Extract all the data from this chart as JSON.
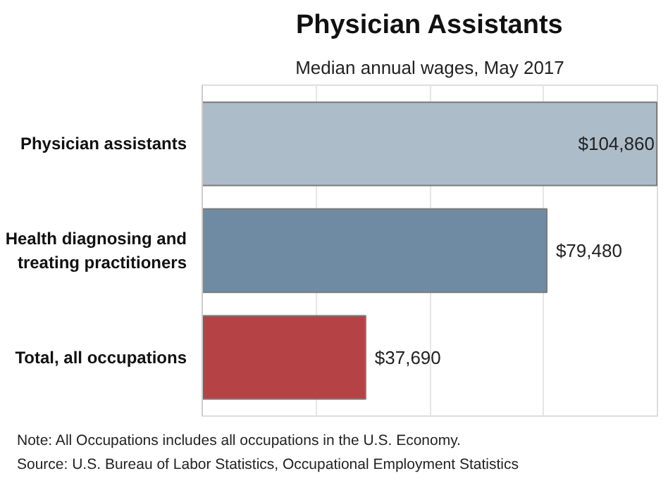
{
  "chart_data": {
    "type": "bar",
    "orientation": "horizontal",
    "title": "Physician Assistants",
    "subtitle": "Median annual wages, May 2017",
    "categories": [
      "Physician assistants",
      "Health diagnosing and treating practitioners",
      "Total, all occupations"
    ],
    "values": [
      104860,
      79480,
      37690
    ],
    "colors": [
      "#adbcc9",
      "#6f8ba4",
      "#b54345"
    ],
    "value_labels": [
      "$104,860",
      "$79,480",
      "$37,690"
    ],
    "xlim": [
      0,
      105000
    ],
    "xticks": [
      {
        "value": 0,
        "label": null
      },
      {
        "value": 26250,
        "label": null
      },
      {
        "value": 52500,
        "label": null
      },
      {
        "value": 78750,
        "label": null
      },
      {
        "value": 105000,
        "label": null
      }
    ],
    "tick_labels": "y",
    "grid": "x",
    "annotations": [
      "Note: All Occupations includes all occupations in the U.S. Economy.",
      "Source: U.S. Bureau of Labor Statistics, Occupational Employment Statistics"
    ]
  }
}
